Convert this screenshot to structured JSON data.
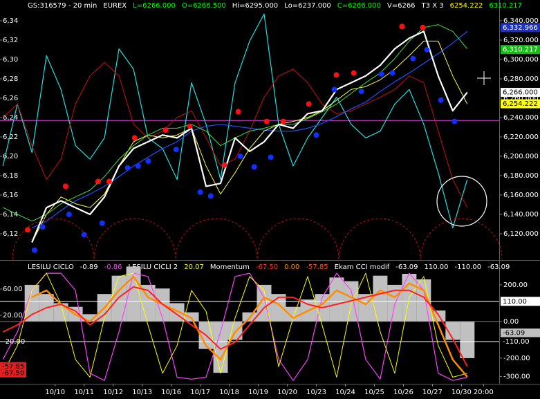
{
  "chart_data": [
    {
      "type": "line",
      "legend_items": [
        {
          "text": "GS:316579 - 20 min",
          "color": "#ffffff"
        },
        {
          "text": "EUREX",
          "color": "#ffffff"
        },
        {
          "text": "L=6266.000",
          "color": "#00ff00"
        },
        {
          "text": "O=6266.500",
          "color": "#00ff00"
        },
        {
          "text": "Hi=6295.000",
          "color": "#ffffff"
        },
        {
          "text": "Lo=6237.000",
          "color": "#ffffff"
        },
        {
          "text": "C=6266.000",
          "color": "#00ff00"
        },
        {
          "text": "V=6266",
          "color": "#ffffff"
        },
        {
          "text": "T3 X 3",
          "color": "#ffffff"
        },
        {
          "text": "6254.222",
          "color": "#ffff00"
        },
        {
          "text": "6310.217",
          "color": "#00ff00"
        }
      ],
      "xlim": [
        -0.9,
        16.3
      ],
      "ylim": [
        6093.6,
        6361.4
      ],
      "y2lim": [
        6093.6,
        6361.4
      ],
      "yticks": [
        {
          "value": 6340,
          "label": "6,34"
        },
        {
          "value": 6320,
          "label": "6,32"
        },
        {
          "value": 6300,
          "label": "6,30"
        },
        {
          "value": 6280,
          "label": "6,28"
        },
        {
          "value": 6260,
          "label": "6,26"
        },
        {
          "value": 6240,
          "label": "6,24"
        },
        {
          "value": 6220,
          "label": "6,22"
        },
        {
          "value": 6200,
          "label": "6,20"
        },
        {
          "value": 6180,
          "label": "6,18"
        },
        {
          "value": 6160,
          "label": "6,16"
        },
        {
          "value": 6140,
          "label": "6,14"
        },
        {
          "value": 6120,
          "label": "6,12"
        }
      ],
      "y2ticks": [
        {
          "value": 6340,
          "label": "6,340.000"
        },
        {
          "value": 6320,
          "label": "6,320.000"
        },
        {
          "value": 6300,
          "label": "6,300.000"
        },
        {
          "value": 6280,
          "label": "6,280.000"
        },
        {
          "value": 6260,
          "label": "6,260.000"
        },
        {
          "value": 6240,
          "label": "6,240.000"
        },
        {
          "value": 6220,
          "label": "6,220.000"
        },
        {
          "value": 6200,
          "label": "6,200.000"
        },
        {
          "value": 6180,
          "label": "6,180.000"
        },
        {
          "value": 6160,
          "label": "6,160.000"
        },
        {
          "value": 6140,
          "label": "6,140.000"
        },
        {
          "value": 6120,
          "label": "6,120.000"
        }
      ],
      "x": [
        -0.8,
        -0.3,
        0.2,
        0.7,
        1.2,
        1.7,
        2.2,
        2.7,
        3.2,
        3.7,
        4.2,
        4.7,
        5.2,
        5.7,
        6.2,
        6.7,
        7.2,
        7.7,
        8.2,
        8.7,
        9.2,
        9.7,
        10.2,
        10.7,
        11.2,
        11.7,
        12.2,
        12.7,
        13.2,
        13.7,
        14.2,
        14.7,
        15.2
      ],
      "series": [
        {
          "color": "#20e0e0",
          "width": 1.2,
          "values": [
            6190,
            6254,
            6204,
            6304,
            6269,
            6211,
            6197,
            6219,
            6311,
            6290,
            6219,
            6208,
            6176,
            6276,
            6233,
            6176,
            6276,
            6319,
            6347,
            6233,
            6190,
            6219,
            6240,
            6261,
            6233,
            6219,
            6226,
            6254,
            6269,
            6233,
            6183,
            6126,
            6176
          ]
        },
        {
          "color": "#c81010",
          "width": 1,
          "values": [
            6240,
            6254,
            6211,
            6176,
            6197,
            6254,
            6283,
            6297,
            6283,
            6233,
            6219,
            6226,
            6240,
            6247,
            6219,
            6190,
            6197,
            6226,
            6261,
            6283,
            6290,
            6276,
            6254,
            6244,
            6247,
            6254,
            6261,
            6269,
            6283,
            6276,
            6226,
            6176,
            6147
          ]
        },
        {
          "color": "#2050ff",
          "width": 1.2,
          "values": [
            null,
            null,
            6126,
            6133,
            6144,
            6154,
            6161,
            6169,
            6179,
            6190,
            6199,
            6208,
            6215,
            6226,
            6231,
            6233,
            6231,
            6229,
            6227,
            6226,
            6226,
            6229,
            6234,
            6241,
            6249,
            6256,
            6267,
            6277,
            6286,
            6296,
            6306,
            6317,
            6329
          ]
        },
        {
          "color": "#ffff40",
          "width": 1,
          "values": [
            null,
            null,
            6111,
            6140,
            6158,
            6151,
            6147,
            6161,
            6190,
            6215,
            6222,
            6219,
            6222,
            6229,
            6190,
            6161,
            6183,
            6208,
            6226,
            6233,
            6236,
            6240,
            6247,
            6258,
            6269,
            6272,
            6279,
            6290,
            6304,
            6319,
            6319,
            6283,
            6254
          ]
        },
        {
          "color": "#40e040",
          "width": 1,
          "values": [
            6147,
            6140,
            6133,
            6140,
            6151,
            6158,
            6165,
            6179,
            6197,
            6211,
            6222,
            6229,
            6229,
            6233,
            6226,
            6211,
            6219,
            6226,
            6229,
            6233,
            6233,
            6239,
            6246,
            6254,
            6265,
            6276,
            6286,
            6301,
            6319,
            6333,
            6336,
            6329,
            6311
          ]
        },
        {
          "color": "#ffffff",
          "width": 2.2,
          "values": [
            null,
            null,
            6111,
            6147,
            6154,
            6147,
            6140,
            6158,
            6190,
            6208,
            6215,
            6222,
            6219,
            6229,
            6169,
            6172,
            6219,
            6205,
            6215,
            6233,
            6229,
            6244,
            6247,
            6269,
            6276,
            6283,
            6294,
            6311,
            6322,
            6329,
            6283,
            6247,
            6266
          ]
        }
      ],
      "markers": [
        {
          "color": "#ff1010",
          "x": [
            0.05,
            1.36,
            2.48,
            2.86,
            3.74,
            4.81,
            5.64,
            6.83,
            7.31,
            8.29,
            8.86,
            9.74,
            10.69,
            11.29,
            12.95,
            13.67
          ],
          "values": [
            6124,
            6169,
            6174,
            6174,
            6219,
            6227,
            6231,
            6191,
            6246,
            6236,
            6236,
            6254,
            6284,
            6286,
            6334,
            6333
          ]
        },
        {
          "color": "#1030ff",
          "x": [
            0.29,
            0.57,
            1.48,
            2.0,
            2.62,
            3.5,
            3.86,
            4.21,
            5.17,
            6.0,
            6.36,
            7.38,
            7.86,
            8.43,
            10.0,
            10.62,
            11.55,
            12.24,
            12.62,
            13.33,
            13.81,
            14.29,
            14.76
          ],
          "values": [
            6103,
            6127,
            6140,
            6119,
            6131,
            6188,
            6190,
            6195,
            6207,
            6163,
            6159,
            6200,
            6189,
            6199,
            6222,
            6269,
            6267,
            6285,
            6286,
            6301,
            6310,
            6258,
            6236
          ]
        }
      ],
      "hlines": [
        {
          "value": 6237,
          "color": "#e040e0"
        }
      ],
      "badges": [
        {
          "value": 6332.966,
          "label": "6,332.966",
          "color": "#1a30c8",
          "text_color": "#ffffff",
          "side": "right"
        },
        {
          "value": 6310.217,
          "label": "6,310.217",
          "color": "#10c010",
          "text_color": "#ffffff",
          "side": "right"
        },
        {
          "value": 6266,
          "label": "6,266.000",
          "color": "#ffffff",
          "text_color": "#000000",
          "side": "right"
        },
        {
          "value": 6254.222,
          "label": "6,254.222",
          "color": "#ffff00",
          "text_color": "#000000",
          "side": "right"
        }
      ]
    },
    {
      "type": "line",
      "legend_items": [
        {
          "text": "LESILU CICLO",
          "color": "#ffffff"
        },
        {
          "text": "-0.89",
          "color": "#ffffff"
        },
        {
          "text": "-0.86",
          "color": "#ff40ff"
        },
        {
          "text": "LESILU CICLI 2",
          "color": "#ffffff"
        },
        {
          "text": "20.07",
          "color": "#ffff00"
        },
        {
          "text": "Momentum",
          "color": "#ffffff"
        },
        {
          "text": "-67.50",
          "color": "#ff3030"
        },
        {
          "text": "0.00",
          "color": "#ff8c00"
        },
        {
          "text": "-57.85",
          "color": "#ff5020"
        },
        {
          "text": "Ekam CCI modif",
          "color": "#ffffff"
        },
        {
          "text": "-63.09",
          "color": "#ffffff"
        },
        {
          "text": "110.00",
          "color": "#ffffff"
        },
        {
          "text": "-110.00",
          "color": "#ffffff"
        },
        {
          "text": "-63.09",
          "color": "#ffffff"
        }
      ],
      "xlim": [
        -0.9,
        16.3
      ],
      "xticks": [
        {
          "value": 1,
          "label": "10/10"
        },
        {
          "value": 2,
          "label": "10/11"
        },
        {
          "value": 3,
          "label": "10/12"
        },
        {
          "value": 4,
          "label": "10/13"
        },
        {
          "value": 5,
          "label": "10/16"
        },
        {
          "value": 6,
          "label": "10/17"
        },
        {
          "value": 7,
          "label": "10/18"
        },
        {
          "value": 8,
          "label": "10/19"
        },
        {
          "value": 9,
          "label": "10/20"
        },
        {
          "value": 10,
          "label": "10/23"
        },
        {
          "value": 11,
          "label": "10/24"
        },
        {
          "value": 12,
          "label": "10/25"
        },
        {
          "value": 13,
          "label": "10/26"
        },
        {
          "value": 14,
          "label": "10/27"
        },
        {
          "value": 15,
          "label": "10/30"
        },
        {
          "value": 15.76,
          "label": "20:00"
        }
      ],
      "ylim": [
        -84,
        102
      ],
      "yticks": [
        {
          "value": 60,
          "label": "60.00"
        },
        {
          "value": 20,
          "label": "20.00"
        },
        {
          "value": -20,
          "label": "-20.00"
        }
      ],
      "y2lim": [
        -340,
        328
      ],
      "y2ticks": [
        {
          "value": 200,
          "label": "200.00"
        },
        {
          "value": 0,
          "label": "0.00"
        },
        {
          "value": -200,
          "label": "-200.00"
        },
        {
          "value": -300,
          "label": "-300.00"
        }
      ],
      "x": [
        -0.8,
        -0.3,
        0.2,
        0.7,
        1.2,
        1.7,
        2.2,
        2.7,
        3.2,
        3.7,
        4.2,
        4.7,
        5.2,
        5.7,
        6.2,
        6.7,
        7.2,
        7.7,
        8.2,
        8.7,
        9.2,
        9.7,
        10.2,
        10.7,
        11.2,
        11.7,
        12.2,
        12.7,
        13.2,
        13.7,
        14.2,
        14.7,
        15.2
      ],
      "bars": {
        "color": "#c0c0c0",
        "axis": "y2",
        "values": [
          null,
          null,
          200,
          150,
          100,
          80,
          40,
          150,
          250,
          300,
          200,
          180,
          100,
          50,
          -150,
          -280,
          -100,
          50,
          200,
          150,
          80,
          120,
          150,
          240,
          220,
          150,
          250,
          200,
          260,
          230,
          60,
          -100,
          -200
        ]
      },
      "hlines": [
        {
          "value": 110,
          "color": "#ffffff",
          "axis": "y2"
        },
        {
          "value": -110,
          "color": "#ffffff",
          "axis": "y2"
        },
        {
          "value": 0,
          "color": "#808080",
          "axis": "y2"
        }
      ],
      "series": [
        {
          "color": "#ff40ff",
          "width": 1.2,
          "values": [
            -47,
            -5,
            58,
            84,
            84,
            58,
            -68,
            -79,
            -5,
            84,
            79,
            16,
            -74,
            -77,
            -74,
            -5,
            79,
            84,
            47,
            -47,
            -79,
            -47,
            47,
            84,
            58,
            -47,
            -77,
            37,
            84,
            58,
            -68,
            -79,
            -74
          ]
        },
        {
          "color": "#ffff00",
          "width": 1,
          "values": [
            -68,
            -26,
            58,
            84,
            37,
            -47,
            -74,
            16,
            79,
            84,
            5,
            -68,
            -26,
            58,
            26,
            -68,
            16,
            79,
            58,
            -58,
            16,
            79,
            5,
            -74,
            37,
            84,
            -5,
            -68,
            47,
            79,
            -26,
            -74,
            -68
          ]
        },
        {
          "color": "#ff8c00",
          "width": 2.5,
          "axis": "y2",
          "values": [
            null,
            null,
            132,
            170,
            94,
            38,
            0,
            75,
            170,
            245,
            132,
            94,
            57,
            19,
            -132,
            -208,
            -57,
            19,
            132,
            94,
            19,
            57,
            94,
            170,
            132,
            94,
            170,
            132,
            208,
            170,
            -19,
            -208,
            -302
          ]
        },
        {
          "color": "#ff2020",
          "width": 2,
          "axis": "y2",
          "values": [
            -57,
            -19,
            38,
            75,
            94,
            57,
            -19,
            38,
            132,
            189,
            170,
            94,
            38,
            -19,
            -75,
            -151,
            -113,
            -19,
            75,
            132,
            132,
            94,
            75,
            94,
            113,
            132,
            151,
            170,
            170,
            132,
            38,
            -94,
            -245
          ]
        }
      ],
      "badges": [
        {
          "value": 110,
          "label": "110.00",
          "color": "#ffffff",
          "text_color": "#000000",
          "side": "right",
          "axis": "y2"
        },
        {
          "value": -63.09,
          "label": "-63.09",
          "color": "#c0c0c0",
          "text_color": "#000000",
          "side": "right",
          "axis": "y2"
        },
        {
          "value": -110,
          "label": "-110.00",
          "color": "#000000",
          "text_color": "#ffffff",
          "side": "right",
          "axis": "y2"
        },
        {
          "value": -57.85,
          "label": "-57.85",
          "color": "#e02020",
          "text_color": "#000000",
          "side": "left"
        },
        {
          "value": -67.5,
          "label": "-67.50",
          "color": "#e02020",
          "text_color": "#000000",
          "side": "left"
        }
      ]
    }
  ]
}
